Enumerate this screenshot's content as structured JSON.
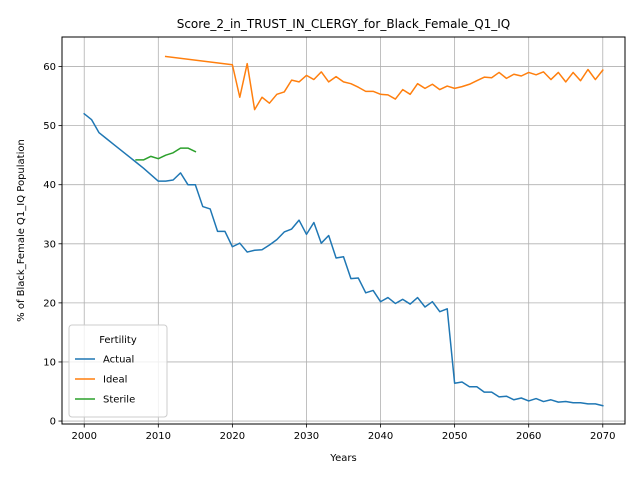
{
  "chart_data": {
    "type": "line",
    "title": "Score_2_in_TRUST_IN_CLERGY_for_Black_Female_Q1_IQ",
    "xlabel": "Years",
    "ylabel": "% of Black_Female Q1_IQ Population",
    "xlim": [
      1997,
      2073
    ],
    "ylim": [
      -0.5,
      65
    ],
    "xticks": [
      2000,
      2010,
      2020,
      2030,
      2040,
      2050,
      2060,
      2070
    ],
    "yticks": [
      0,
      10,
      20,
      30,
      40,
      50,
      60
    ],
    "grid": true,
    "legend": {
      "title": "Fertility",
      "placement": "lower-left"
    },
    "series": [
      {
        "name": "Actual",
        "color": "#1f77b4",
        "x": [
          2000,
          2001,
          2002,
          2003,
          2004,
          2005,
          2006,
          2007,
          2008,
          2009,
          2010,
          2011,
          2012,
          2013,
          2014,
          2015,
          2016,
          2017,
          2018,
          2019,
          2020,
          2021,
          2022,
          2023,
          2024,
          2025,
          2026,
          2027,
          2028,
          2029,
          2030,
          2031,
          2032,
          2033,
          2034,
          2035,
          2036,
          2037,
          2038,
          2039,
          2040,
          2041,
          2042,
          2043,
          2044,
          2045,
          2046,
          2047,
          2048,
          2049,
          2050,
          2051,
          2052,
          2053,
          2054,
          2055,
          2056,
          2057,
          2058,
          2059,
          2060,
          2061,
          2062,
          2063,
          2064,
          2065,
          2066,
          2067,
          2068,
          2069,
          2070
        ],
        "y": [
          52.0,
          51.0,
          48.8,
          47.8,
          46.8,
          45.8,
          44.8,
          43.8,
          42.8,
          41.7,
          40.6,
          40.6,
          40.8,
          42.0,
          40.0,
          40.0,
          36.3,
          35.9,
          32.1,
          32.1,
          29.5,
          30.1,
          28.6,
          28.9,
          29.0,
          29.8,
          30.7,
          32.0,
          32.5,
          34.0,
          31.6,
          33.6,
          30.1,
          31.4,
          27.6,
          27.8,
          24.1,
          24.2,
          21.7,
          22.1,
          20.2,
          20.9,
          19.9,
          20.6,
          19.8,
          20.9,
          19.3,
          20.2,
          18.5,
          19.0,
          6.4,
          6.6,
          5.8,
          5.8,
          4.9,
          4.9,
          4.1,
          4.2,
          3.6,
          3.9,
          3.4,
          3.8,
          3.3,
          3.6,
          3.2,
          3.3,
          3.1,
          3.1,
          2.9,
          2.9,
          2.6
        ]
      },
      {
        "name": "Ideal",
        "color": "#ff7f0e",
        "x": [
          2011,
          2020,
          2021,
          2022,
          2023,
          2024,
          2025,
          2026,
          2027,
          2028,
          2029,
          2030,
          2031,
          2032,
          2033,
          2034,
          2035,
          2036,
          2037,
          2038,
          2039,
          2040,
          2041,
          2042,
          2043,
          2044,
          2045,
          2046,
          2047,
          2048,
          2049,
          2050,
          2051,
          2052,
          2053,
          2054,
          2055,
          2056,
          2057,
          2058,
          2059,
          2060,
          2061,
          2062,
          2063,
          2064,
          2065,
          2066,
          2067,
          2068,
          2069,
          2070
        ],
        "y": [
          61.7,
          60.3,
          54.8,
          60.5,
          52.7,
          54.8,
          53.8,
          55.3,
          55.7,
          57.7,
          57.4,
          58.5,
          57.8,
          59.1,
          57.4,
          58.3,
          57.4,
          57.1,
          56.5,
          55.8,
          55.8,
          55.3,
          55.2,
          54.5,
          56.1,
          55.3,
          57.1,
          56.3,
          57.0,
          56.1,
          56.7,
          56.3,
          56.6,
          57.0,
          57.6,
          58.2,
          58.1,
          59.0,
          58.0,
          58.7,
          58.4,
          59.0,
          58.6,
          59.1,
          57.8,
          59.0,
          57.4,
          59.0,
          57.6,
          59.5,
          57.8,
          59.4
        ]
      },
      {
        "name": "Sterile",
        "color": "#2ca02c",
        "x": [
          2007,
          2008,
          2009,
          2010,
          2011,
          2012,
          2013,
          2014,
          2015
        ],
        "y": [
          44.2,
          44.2,
          44.8,
          44.4,
          45.0,
          45.4,
          46.2,
          46.2,
          45.6
        ]
      }
    ]
  }
}
